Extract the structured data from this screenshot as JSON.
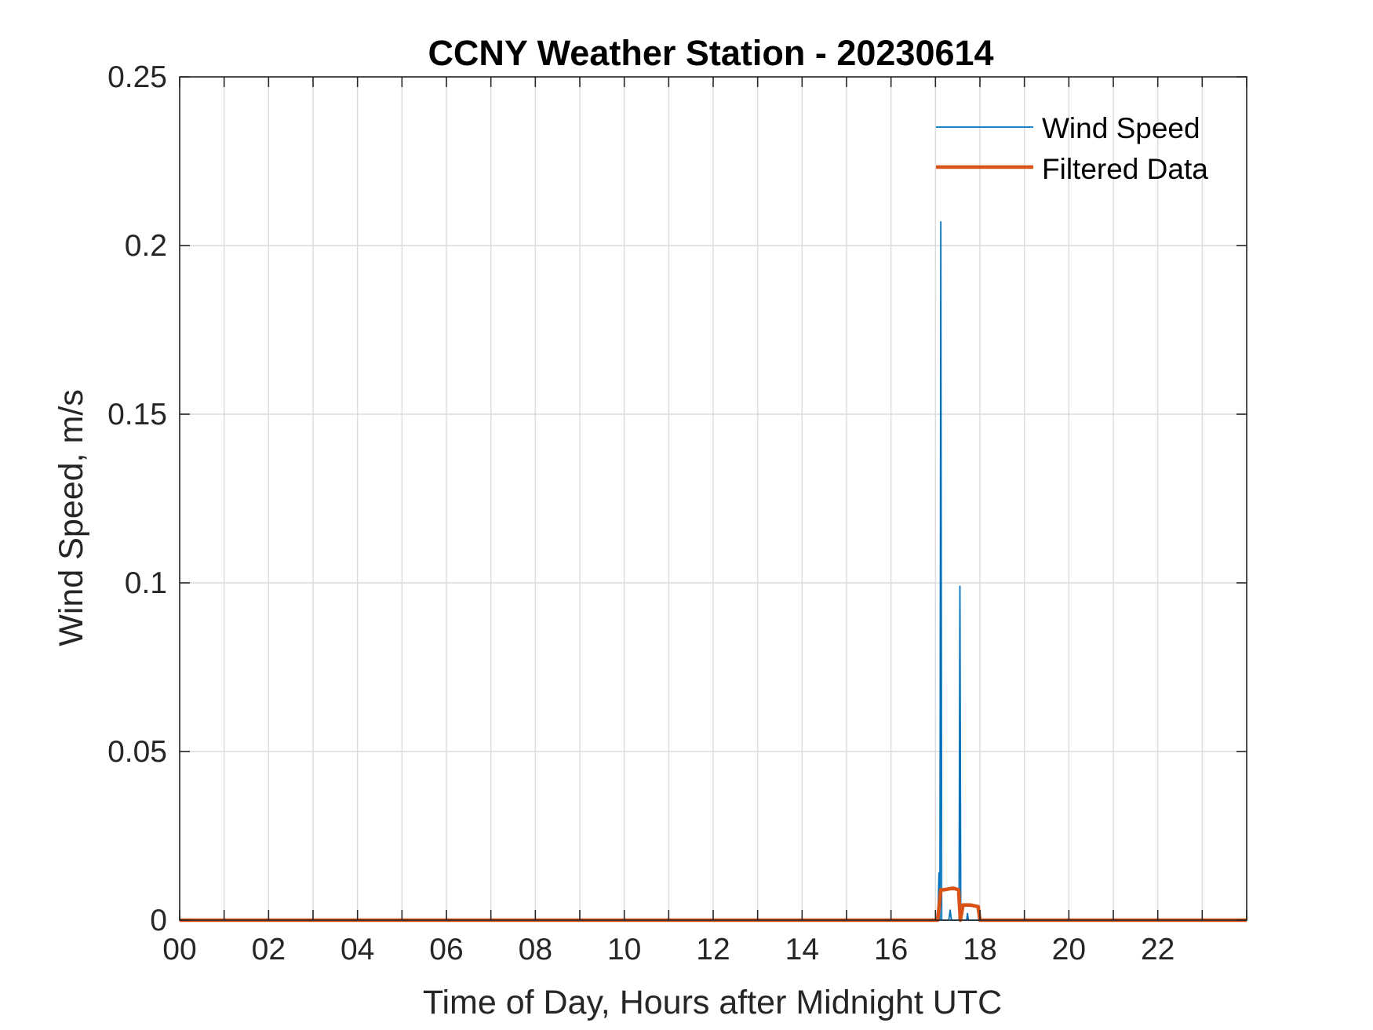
{
  "chart_data": {
    "type": "line",
    "title": "CCNY Weather Station - 20230614",
    "xlabel": "Time of Day, Hours after Midnight UTC",
    "ylabel": "Wind Speed, m/s",
    "xlim": [
      0,
      24
    ],
    "ylim": [
      0,
      0.25
    ],
    "xticks": [
      0,
      2,
      4,
      6,
      8,
      10,
      12,
      14,
      16,
      18,
      20,
      22
    ],
    "xtick_labels": [
      "00",
      "02",
      "04",
      "06",
      "08",
      "10",
      "12",
      "14",
      "16",
      "18",
      "20",
      "22"
    ],
    "xgrid": [
      0,
      1,
      2,
      3,
      4,
      5,
      6,
      7,
      8,
      9,
      10,
      11,
      12,
      13,
      14,
      15,
      16,
      17,
      18,
      19,
      20,
      21,
      22,
      23,
      24
    ],
    "yticks": [
      0,
      0.05,
      0.1,
      0.15,
      0.2,
      0.25
    ],
    "ytick_labels": [
      "0",
      "0.05",
      "0.1",
      "0.15",
      "0.2",
      "0.25"
    ],
    "grid": true,
    "legend_position": "top-right",
    "series": [
      {
        "name": "Wind Speed",
        "color": "#0072BD",
        "x": [
          0,
          17.05,
          17.08,
          17.1,
          17.12,
          17.14,
          17.16,
          17.2,
          17.3,
          17.33,
          17.36,
          17.5,
          17.53,
          17.55,
          17.57,
          17.59,
          17.62,
          17.7,
          17.72,
          17.74,
          17.8,
          24
        ],
        "y": [
          0,
          0,
          0.014,
          0,
          0.207,
          0,
          0,
          0,
          0,
          0.003,
          0,
          0,
          0,
          0.099,
          0,
          0,
          0,
          0,
          0.002,
          0,
          0,
          0
        ]
      },
      {
        "name": "Filtered Data",
        "color": "#D95319",
        "x": [
          0,
          17.05,
          17.12,
          17.2,
          17.4,
          17.52,
          17.56,
          17.62,
          17.78,
          17.96,
          18.0,
          24
        ],
        "y": [
          0,
          0,
          0.009,
          0.009,
          0.0095,
          0.009,
          0,
          0.0045,
          0.0045,
          0.004,
          0,
          0
        ]
      }
    ]
  }
}
